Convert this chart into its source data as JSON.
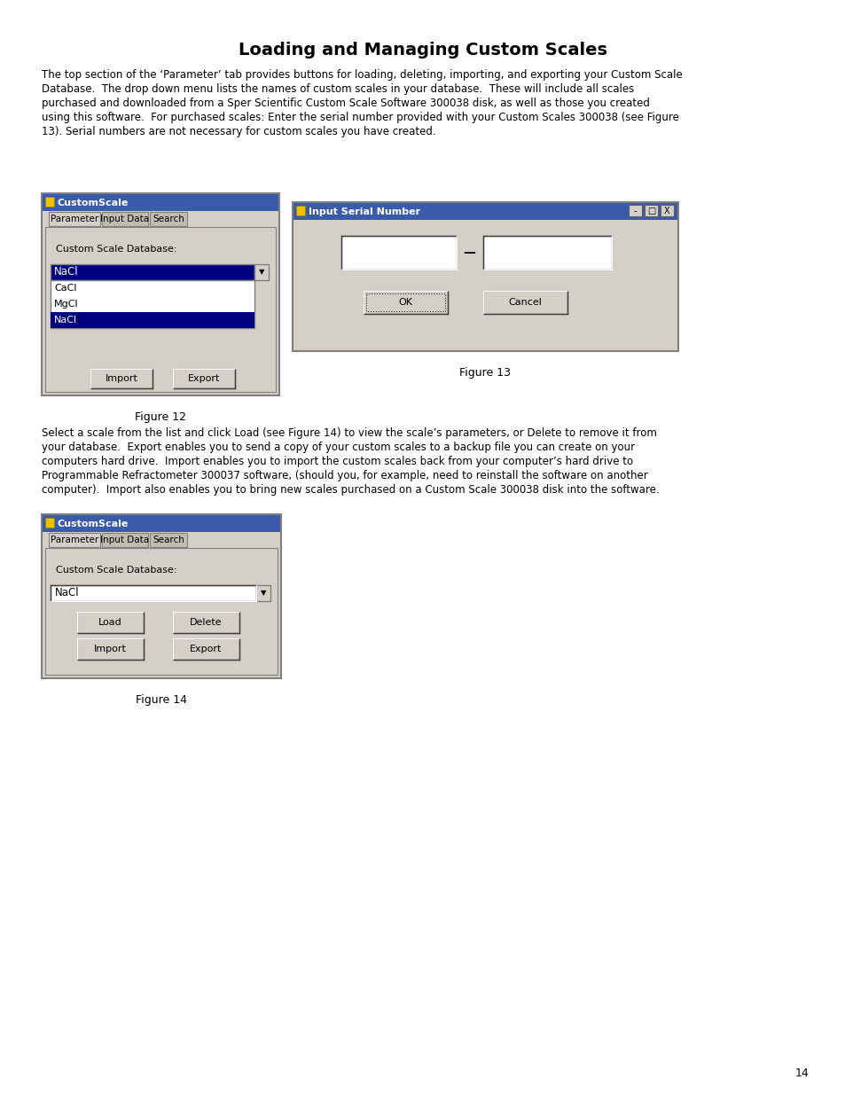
{
  "title": "Loading and Managing Custom Scales",
  "page_number": "14",
  "bg_color": "#ffffff",
  "win_title_color": "#3a5aaa",
  "win_bg_color": "#d4d0c8",
  "highlight_color": "#000080",
  "text_color": "#000000",
  "figure12_caption": "Figure 12",
  "figure13_caption": "Figure 13",
  "figure14_caption": "Figure 14",
  "body1_lines": [
    "The top section of the ‘Parameter’ tab provides buttons for loading, deleting, importing, and exporting your Custom Scale",
    "Database.  The drop down menu lists the names of custom scales in your database.  These will include all scales",
    "purchased and downloaded from a Sper Scientific Custom Scale Software 300038 disk, as well as those you created",
    "using this software.  For purchased scales: Enter the serial number provided with your Custom Scales 300038 (see Figure",
    "13). Serial numbers are not necessary for custom scales you have created."
  ],
  "body2_lines": [
    "Select a scale from the list and click Load (see Figure 14) to view the scale’s parameters, or Delete to remove it from",
    "your database.  Export enables you to send a copy of your custom scales to a backup file you can create on your",
    "computers hard drive.  Import enables you to import the custom scales back from your computer’s hard drive to",
    "Programmable Refractometer 300037 software, (should you, for example, need to reinstall the software on another",
    "computer).  Import also enables you to bring new scales purchased on a Custom Scale 300038 disk into the software."
  ]
}
